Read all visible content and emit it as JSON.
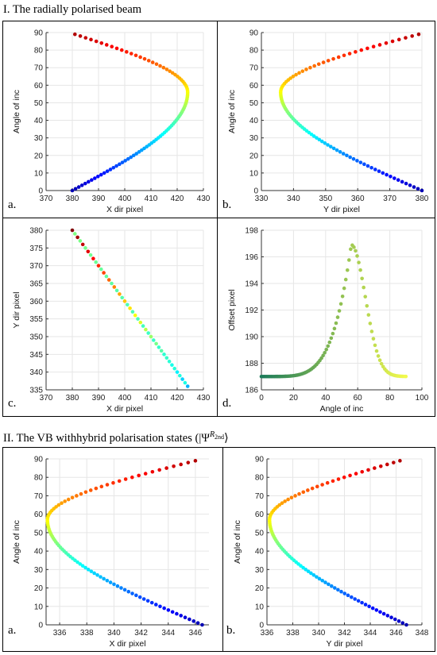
{
  "section1": {
    "title": "I. The radially polarised beam"
  },
  "section2": {
    "title": "II. The VB withhybrid polarisation states (|Ψ",
    "sup": "R",
    "sub": "2nd",
    "close": "⟩"
  },
  "chart_data": [
    {
      "id": "1a",
      "panel_label": "a.",
      "type": "scatter",
      "colormap": "jet-by-y",
      "xlabel": "X dir pixel",
      "ylabel": "Angle of inc",
      "xlim": [
        370,
        430
      ],
      "ylim": [
        0,
        90
      ],
      "xticks": [
        370,
        380,
        390,
        400,
        410,
        420,
        430
      ],
      "yticks": [
        0,
        10,
        20,
        30,
        40,
        50,
        60,
        70,
        80,
        90
      ],
      "grid": true,
      "curve": {
        "kind": "s-bulge",
        "x0": 380,
        "xpeak": 424,
        "xend": 381,
        "ypeak": 56
      }
    },
    {
      "id": "1b",
      "panel_label": "b.",
      "type": "scatter",
      "colormap": "jet-by-y",
      "xlabel": "Y dir pixel",
      "ylabel": "Angle of inc",
      "xlim": [
        330,
        380
      ],
      "ylim": [
        0,
        90
      ],
      "xticks": [
        330,
        340,
        350,
        360,
        370,
        380
      ],
      "yticks": [
        0,
        10,
        20,
        30,
        40,
        50,
        60,
        70,
        80,
        90
      ],
      "grid": true,
      "curve": {
        "kind": "s-bulge",
        "x0": 380,
        "xpeak": 336,
        "xend": 379,
        "ypeak": 56
      }
    },
    {
      "id": "1c",
      "panel_label": "c.",
      "type": "scatter",
      "colormap": "jet-by-x",
      "xlabel": "X dir pixel",
      "ylabel": "Y dir pixel",
      "xlim": [
        370,
        430
      ],
      "ylim": [
        335,
        380
      ],
      "xticks": [
        370,
        380,
        390,
        400,
        410,
        420,
        430
      ],
      "yticks": [
        335,
        340,
        345,
        350,
        355,
        360,
        365,
        370,
        375,
        380
      ],
      "grid": true,
      "points": {
        "x_start": 380,
        "y_start": 380,
        "x_end": 424,
        "y_end": 336
      }
    },
    {
      "id": "1d",
      "panel_label": "d.",
      "type": "scatter",
      "colormap": "summer-by-x",
      "xlabel": "Angle of inc",
      "ylabel": "Offset pixel",
      "xlim": [
        0,
        100
      ],
      "ylim": [
        186,
        198
      ],
      "xticks": [
        0,
        20,
        40,
        60,
        80,
        100
      ],
      "yticks": [
        186,
        188,
        190,
        192,
        194,
        196,
        198
      ],
      "grid": true,
      "curve": {
        "kind": "peak",
        "xmin": 0,
        "xmax": 90,
        "baseline": 187,
        "peak_x": 56,
        "peak_y": 196.9
      }
    },
    {
      "id": "2a",
      "panel_label": "a.",
      "type": "scatter",
      "colormap": "jet-by-y",
      "xlabel": "X dir pixel",
      "ylabel": "Angle of inc",
      "xlim": [
        335,
        347
      ],
      "ylim": [
        0,
        90
      ],
      "xticks": [
        336,
        338,
        340,
        342,
        344,
        346
      ],
      "yticks": [
        0,
        10,
        20,
        30,
        40,
        50,
        60,
        70,
        80,
        90
      ],
      "grid": true,
      "curve": {
        "kind": "s-bulge",
        "x0": 346.5,
        "xpeak": 335.1,
        "xend": 346,
        "ypeak": 57
      }
    },
    {
      "id": "2b",
      "panel_label": "b.",
      "type": "scatter",
      "colormap": "jet-by-y",
      "xlabel": "Y dir pixel",
      "ylabel": "Angle of inc",
      "xlim": [
        336,
        348
      ],
      "ylim": [
        0,
        90
      ],
      "xticks": [
        336,
        338,
        340,
        342,
        344,
        346,
        348
      ],
      "yticks": [
        0,
        10,
        20,
        30,
        40,
        50,
        60,
        70,
        80,
        90
      ],
      "grid": true,
      "curve": {
        "kind": "s-bulge",
        "x0": 346.8,
        "xpeak": 336.2,
        "xend": 346.3,
        "ypeak": 57
      }
    }
  ]
}
